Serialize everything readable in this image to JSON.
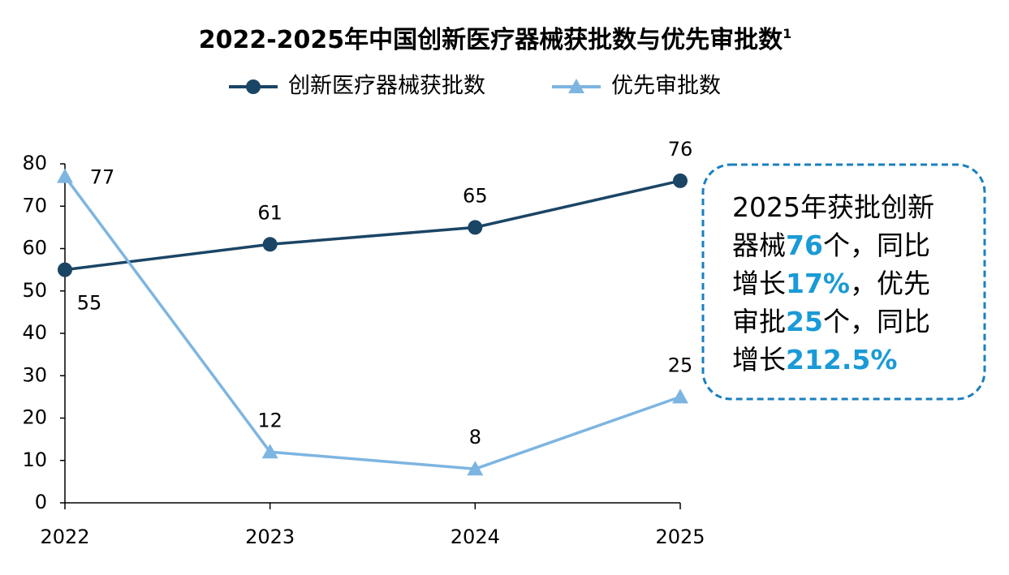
{
  "chart_data": {
    "type": "line",
    "title": "2022-2025年中国创新医疗器械获批数与优先审批数",
    "title_note": "1",
    "x": [
      2022,
      2023,
      2024,
      2025
    ],
    "xticks": [
      2022,
      2023,
      2024,
      2025
    ],
    "xlim": [
      2022,
      2025
    ],
    "series": [
      {
        "name": "创新医疗器械获批数",
        "color": "#1b4565",
        "marker": "circle",
        "values": [
          55,
          61,
          65,
          76
        ]
      },
      {
        "name": "优先审批数",
        "color": "#7db5e1",
        "marker": "triangle",
        "values": [
          77,
          12,
          8,
          25
        ]
      }
    ],
    "ylim": [
      0,
      80
    ],
    "yticks": [
      0,
      10,
      20,
      30,
      40,
      50,
      60,
      70,
      80
    ],
    "grid": false,
    "legend": "top",
    "annotation": [
      [
        {
          "text": "2025年获批创新"
        }
      ],
      [
        {
          "text": "器械"
        },
        {
          "text": "76",
          "highlight": true
        },
        {
          "text": "个，同比"
        }
      ],
      [
        {
          "text": "增长"
        },
        {
          "text": "17%",
          "highlight": true
        },
        {
          "text": "，优先"
        }
      ],
      [
        {
          "text": "审批"
        },
        {
          "text": "25",
          "highlight": true
        },
        {
          "text": "个，同比"
        }
      ],
      [
        {
          "text": "增长"
        },
        {
          "text": "212.5%",
          "highlight": true
        }
      ]
    ],
    "annotation_highlight_color": "#1a9ad6"
  }
}
